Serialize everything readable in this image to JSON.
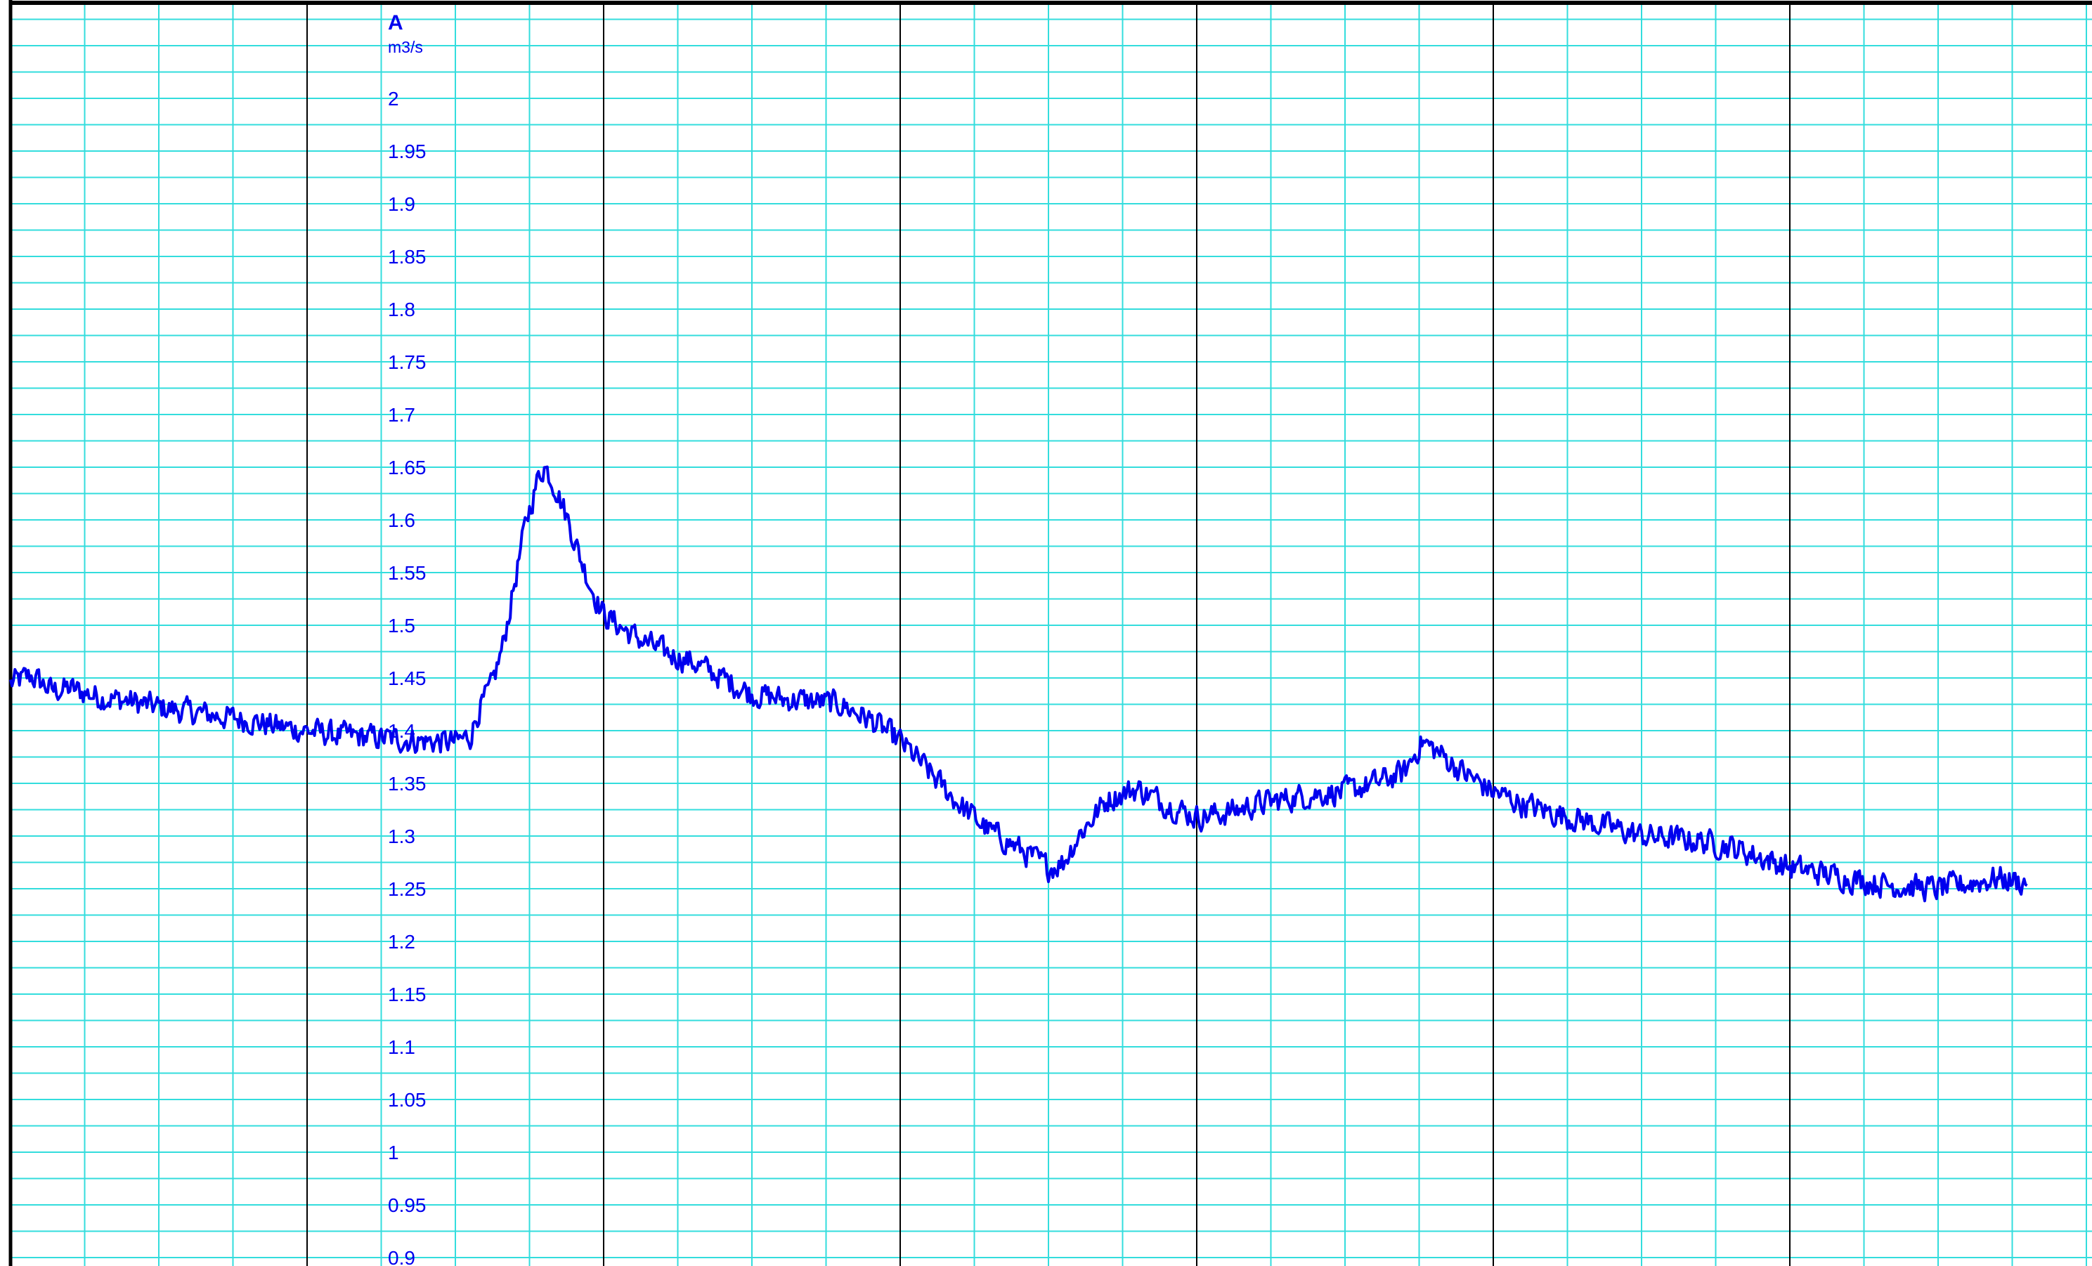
{
  "chart_data": {
    "type": "line",
    "title": "",
    "xlabel": "",
    "ylabel": "A",
    "yunit": "m3/s",
    "ylim": [
      0.9,
      2.0
    ],
    "yticks": [
      0.9,
      0.95,
      1,
      1.05,
      1.1,
      1.15,
      1.2,
      1.25,
      1.3,
      1.35,
      1.4,
      1.45,
      1.5,
      1.55,
      1.6,
      1.65,
      1.7,
      1.75,
      1.8,
      1.85,
      1.9,
      1.95,
      2
    ],
    "grid": true,
    "legend": "none",
    "colors": {
      "line": "#0000ee",
      "minor_grid": "#33dddd",
      "major_grid": "#000000",
      "labels": "#0000ee"
    },
    "series": [
      {
        "name": "",
        "points": [
          [
            0.0,
            1.445
          ],
          [
            0.07,
            1.452
          ],
          [
            0.14,
            1.438
          ],
          [
            0.2,
            1.44
          ],
          [
            0.3,
            1.432
          ],
          [
            0.4,
            1.428
          ],
          [
            0.5,
            1.422
          ],
          [
            0.6,
            1.418
          ],
          [
            0.7,
            1.414
          ],
          [
            0.8,
            1.41
          ],
          [
            0.9,
            1.404
          ],
          [
            1.0,
            1.4
          ],
          [
            1.1,
            1.396
          ],
          [
            1.2,
            1.394
          ],
          [
            1.3,
            1.392
          ],
          [
            1.4,
            1.39
          ],
          [
            1.5,
            1.389
          ],
          [
            1.55,
            1.395
          ],
          [
            1.58,
            1.42
          ],
          [
            1.62,
            1.44
          ],
          [
            1.66,
            1.48
          ],
          [
            1.7,
            1.54
          ],
          [
            1.74,
            1.6
          ],
          [
            1.78,
            1.64
          ],
          [
            1.8,
            1.652
          ],
          [
            1.84,
            1.63
          ],
          [
            1.88,
            1.6
          ],
          [
            1.92,
            1.565
          ],
          [
            1.96,
            1.535
          ],
          [
            2.0,
            1.51
          ],
          [
            2.1,
            1.49
          ],
          [
            2.2,
            1.475
          ],
          [
            2.3,
            1.465
          ],
          [
            2.4,
            1.45
          ],
          [
            2.5,
            1.435
          ],
          [
            2.6,
            1.43
          ],
          [
            2.7,
            1.428
          ],
          [
            2.8,
            1.425
          ],
          [
            2.9,
            1.41
          ],
          [
            3.0,
            1.39
          ],
          [
            3.1,
            1.36
          ],
          [
            3.2,
            1.33
          ],
          [
            3.3,
            1.305
          ],
          [
            3.4,
            1.288
          ],
          [
            3.5,
            1.27
          ],
          [
            3.55,
            1.275
          ],
          [
            3.6,
            1.3
          ],
          [
            3.7,
            1.335
          ],
          [
            3.8,
            1.345
          ],
          [
            3.9,
            1.33
          ],
          [
            4.0,
            1.318
          ],
          [
            4.1,
            1.322
          ],
          [
            4.2,
            1.33
          ],
          [
            4.3,
            1.335
          ],
          [
            4.4,
            1.34
          ],
          [
            4.5,
            1.342
          ],
          [
            4.6,
            1.35
          ],
          [
            4.7,
            1.36
          ],
          [
            4.76,
            1.39
          ],
          [
            4.82,
            1.378
          ],
          [
            4.9,
            1.36
          ],
          [
            5.0,
            1.342
          ],
          [
            5.1,
            1.33
          ],
          [
            5.2,
            1.322
          ],
          [
            5.3,
            1.315
          ],
          [
            5.4,
            1.308
          ],
          [
            5.5,
            1.3
          ],
          [
            5.6,
            1.298
          ],
          [
            5.7,
            1.295
          ],
          [
            5.8,
            1.29
          ],
          [
            5.9,
            1.28
          ],
          [
            6.0,
            1.27
          ],
          [
            6.1,
            1.265
          ],
          [
            6.2,
            1.26
          ],
          [
            6.3,
            1.255
          ],
          [
            6.4,
            1.252
          ],
          [
            6.5,
            1.25
          ],
          [
            6.6,
            1.255
          ],
          [
            6.7,
            1.26
          ],
          [
            6.8,
            1.255
          ]
        ]
      }
    ]
  }
}
